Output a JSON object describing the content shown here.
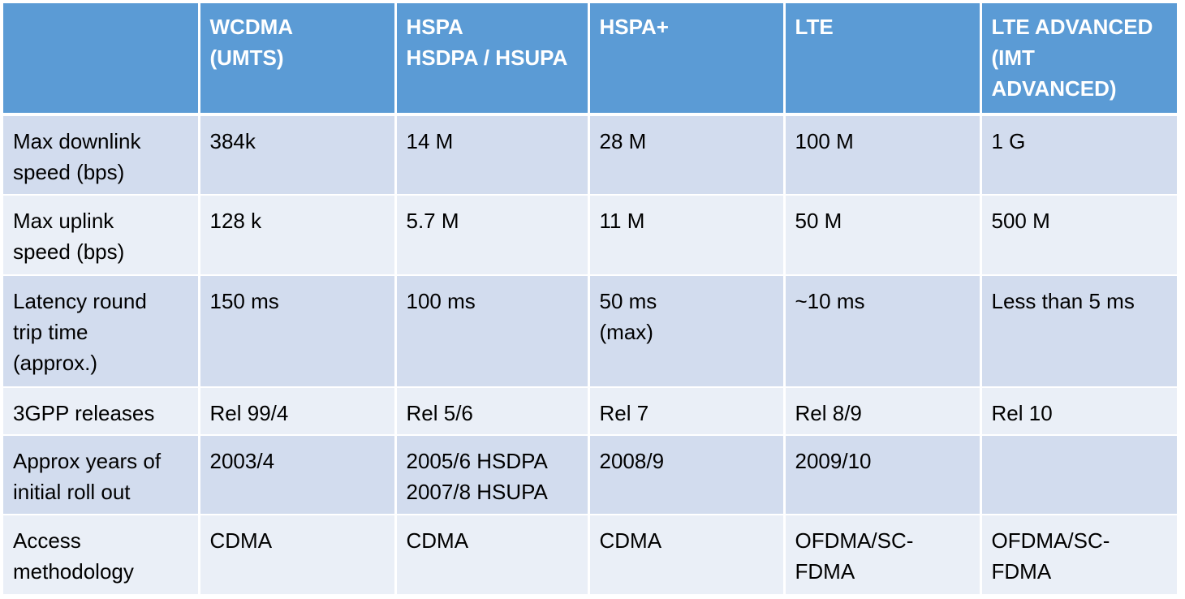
{
  "table": {
    "headers": [
      "",
      "WCDMA\n(UMTS)",
      "HSPA\nHSDPA / HSUPA",
      "HSPA+",
      "LTE",
      "LTE ADVANCED\n(IMT\nADVANCED)"
    ],
    "rows": [
      [
        "Max downlink\nspeed (bps)",
        "384k",
        "14 M",
        "28 M",
        "100 M",
        "1 G"
      ],
      [
        "Max uplink\nspeed (bps)",
        "128 k",
        "5.7 M",
        "11 M",
        "50 M",
        "500 M"
      ],
      [
        "Latency round\ntrip time\n(approx.)",
        "150 ms",
        "100 ms",
        "50 ms\n(max)",
        "~10 ms",
        "Less than 5 ms"
      ],
      [
        "3GPP releases",
        "Rel 99/4",
        "Rel 5/6",
        "Rel 7",
        "Rel 8/9",
        "Rel 10"
      ],
      [
        "Approx years of\ninitial roll out",
        "2003/4",
        "2005/6 HSDPA\n2007/8 HSUPA",
        "2008/9",
        "2009/10",
        ""
      ],
      [
        "Access\nmethodology",
        "CDMA",
        "CDMA",
        "CDMA",
        "OFDMA/SC-\nFDMA",
        "OFDMA/SC-\nFDMA"
      ]
    ]
  },
  "colors": {
    "header_bg": "#5b9bd5",
    "header_text": "#ffffff",
    "row_odd_bg": "#d2dcee",
    "row_even_bg": "#eaeff7",
    "body_text": "#000000"
  }
}
